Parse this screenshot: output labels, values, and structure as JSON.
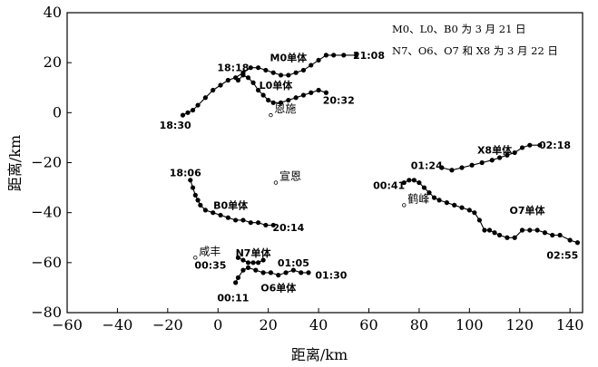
{
  "chart_data": {
    "type": "scatter",
    "xlabel": "距离/km",
    "ylabel": "距离/km",
    "xlim": [
      -60,
      145
    ],
    "ylim": [
      -80,
      40
    ],
    "xticks": [
      -60,
      -40,
      -20,
      0,
      20,
      40,
      60,
      80,
      100,
      120,
      140
    ],
    "yticks": [
      -80,
      -60,
      -40,
      -20,
      0,
      20,
      40
    ],
    "grid": false,
    "notes": [
      "M0、L0、B0 为 3 月 21 日",
      "N7、O6、O7 和 X8 为 3 月 22 日"
    ],
    "series": [
      {
        "name": "M0单体",
        "points": [
          [
            -14,
            -1
          ],
          [
            -12,
            0
          ],
          [
            -10,
            1
          ],
          [
            -8,
            3
          ],
          [
            -5,
            6
          ],
          [
            -2,
            9
          ],
          [
            1,
            11
          ],
          [
            4,
            13
          ],
          [
            7,
            14
          ],
          [
            10,
            16
          ],
          [
            13,
            18
          ],
          [
            16,
            18
          ],
          [
            19,
            17
          ],
          [
            22,
            16
          ],
          [
            25,
            15
          ],
          [
            28,
            15
          ],
          [
            31,
            16
          ],
          [
            34,
            17
          ],
          [
            37,
            19
          ],
          [
            40,
            21
          ],
          [
            43,
            23
          ],
          [
            46,
            23
          ],
          [
            50,
            23
          ],
          [
            55,
            23
          ]
        ]
      },
      {
        "name": "L0单体",
        "points": [
          [
            8,
            13
          ],
          [
            10,
            15
          ],
          [
            12,
            14
          ],
          [
            14,
            12
          ],
          [
            16,
            9
          ],
          [
            18,
            7
          ],
          [
            20,
            5
          ],
          [
            22,
            4
          ],
          [
            25,
            4
          ],
          [
            28,
            5
          ],
          [
            31,
            6
          ],
          [
            34,
            7
          ],
          [
            37,
            8
          ],
          [
            40,
            9
          ],
          [
            43,
            8
          ]
        ]
      },
      {
        "name": "B0单体",
        "points": [
          [
            -11,
            -27
          ],
          [
            -10,
            -30
          ],
          [
            -9,
            -33
          ],
          [
            -8,
            -35
          ],
          [
            -7,
            -37
          ],
          [
            -5,
            -39
          ],
          [
            -2,
            -40
          ],
          [
            1,
            -41
          ],
          [
            4,
            -42
          ],
          [
            7,
            -43
          ],
          [
            10,
            -43
          ],
          [
            13,
            -44
          ],
          [
            16,
            -44
          ],
          [
            19,
            -45
          ],
          [
            22,
            -45
          ]
        ]
      },
      {
        "name": "N7单体",
        "points": [
          [
            8,
            -58
          ],
          [
            10,
            -59
          ],
          [
            12,
            -60
          ],
          [
            14,
            -60
          ],
          [
            16,
            -60
          ],
          [
            18,
            -59
          ]
        ]
      },
      {
        "name": "O6单体",
        "points": [
          [
            7,
            -68
          ],
          [
            8,
            -66
          ],
          [
            10,
            -63
          ],
          [
            12,
            -62
          ],
          [
            15,
            -63
          ],
          [
            18,
            -64
          ],
          [
            21,
            -64
          ],
          [
            24,
            -65
          ],
          [
            27,
            -64
          ],
          [
            30,
            -63
          ],
          [
            33,
            -64
          ],
          [
            36,
            -64
          ]
        ]
      },
      {
        "name": "X8单体",
        "points": [
          [
            89,
            -22
          ],
          [
            93,
            -23
          ],
          [
            97,
            -22
          ],
          [
            101,
            -21
          ],
          [
            105,
            -20
          ],
          [
            109,
            -19
          ],
          [
            112,
            -18
          ],
          [
            115,
            -17
          ],
          [
            118,
            -16
          ],
          [
            121,
            -14
          ],
          [
            124,
            -13
          ],
          [
            128,
            -13
          ]
        ]
      },
      {
        "name": "O7单体",
        "points": [
          [
            74,
            -28
          ],
          [
            76,
            -27
          ],
          [
            78,
            -27
          ],
          [
            80,
            -28
          ],
          [
            82,
            -30
          ],
          [
            84,
            -32
          ],
          [
            86,
            -34
          ],
          [
            88,
            -35
          ],
          [
            91,
            -36
          ],
          [
            94,
            -37
          ],
          [
            97,
            -38
          ],
          [
            100,
            -39
          ],
          [
            102,
            -40
          ],
          [
            104,
            -43
          ],
          [
            106,
            -47
          ],
          [
            108,
            -47
          ],
          [
            110,
            -48
          ],
          [
            112,
            -49
          ],
          [
            115,
            -50
          ],
          [
            118,
            -50
          ],
          [
            121,
            -47
          ],
          [
            124,
            -47
          ],
          [
            127,
            -47
          ],
          [
            130,
            -48
          ],
          [
            133,
            -49
          ],
          [
            136,
            -49
          ],
          [
            140,
            -51
          ],
          [
            143,
            -52
          ]
        ]
      }
    ],
    "time_labels": [
      {
        "text": "18:30",
        "x": -17,
        "y": -5
      },
      {
        "text": "21:08",
        "x": 60,
        "y": 23
      },
      {
        "text": "18:18",
        "x": 6,
        "y": 18
      },
      {
        "text": "20:32",
        "x": 48,
        "y": 5
      },
      {
        "text": "18:06",
        "x": -13,
        "y": -24
      },
      {
        "text": "20:14",
        "x": 28,
        "y": -46
      },
      {
        "text": "00:35",
        "x": -3,
        "y": -61
      },
      {
        "text": "00:11",
        "x": 6,
        "y": -74
      },
      {
        "text": "01:05",
        "x": 30,
        "y": -60
      },
      {
        "text": "01:30",
        "x": 45,
        "y": -65
      },
      {
        "text": "01:24",
        "x": 83,
        "y": -21
      },
      {
        "text": "02:18",
        "x": 134,
        "y": -13
      },
      {
        "text": "00:41",
        "x": 68,
        "y": -29
      },
      {
        "text": "02:55",
        "x": 137,
        "y": -57
      }
    ],
    "storm_labels": [
      {
        "text": "M0单体",
        "x": 28,
        "y": 22
      },
      {
        "text": "L0单体",
        "x": 23,
        "y": 11
      },
      {
        "text": "B0单体",
        "x": 5,
        "y": -37
      },
      {
        "text": "N7单体",
        "x": 14,
        "y": -56
      },
      {
        "text": "O6单体",
        "x": 24,
        "y": -70
      },
      {
        "text": "X8单体",
        "x": 110,
        "y": -15
      },
      {
        "text": "O7单体",
        "x": 123,
        "y": -39
      }
    ],
    "places": [
      {
        "name": "恩施",
        "x": 21,
        "y": -1
      },
      {
        "name": "宣恩",
        "x": 23,
        "y": -28
      },
      {
        "name": "鹤峰",
        "x": 74,
        "y": -37
      },
      {
        "name": "咸丰",
        "x": -9,
        "y": -58
      }
    ]
  }
}
